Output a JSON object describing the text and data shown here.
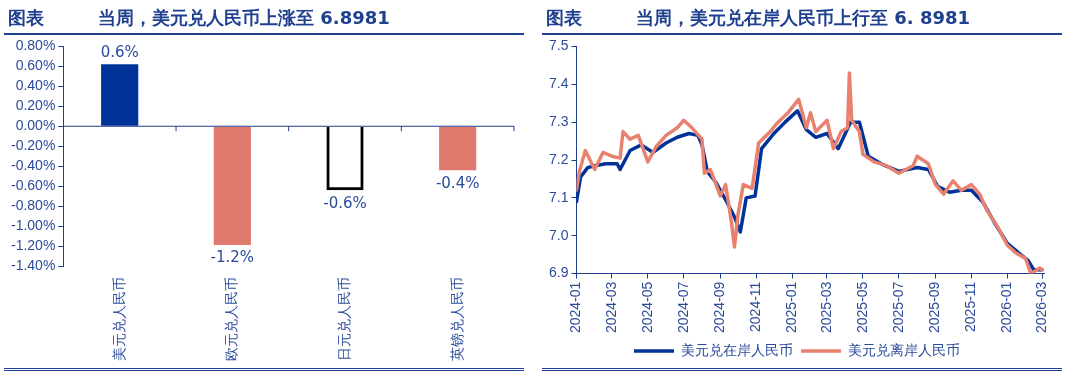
{
  "chart_data": [
    {
      "type": "bar",
      "title": "当周，美元兑人民币上涨至 6.8981",
      "annotations": [
        "图表"
      ],
      "categories": [
        "美元兑人民币",
        "欧元兑人民币",
        "日元兑人民币",
        "英镑兑人民币"
      ],
      "values": [
        0.62,
        -1.19,
        -0.64,
        -0.44
      ],
      "colors": [
        "#003399",
        "#e07a6e",
        "#000000",
        "#e07a6e"
      ],
      "ref_lines": [
        {
          "axis": "y",
          "value": 0,
          "color": "#1f3f8f"
        }
      ],
      "value_labels": [
        "0.6%",
        "-1.2%",
        "-0.6%",
        "-0.4%"
      ],
      "ylim": [
        -1.4,
        0.8
      ],
      "yticks": [
        {
          "value": 0.8,
          "label": "0.80%"
        },
        {
          "value": 0.6,
          "label": "0.60%"
        },
        {
          "value": 0.4,
          "label": "0.40%"
        },
        {
          "value": 0.2,
          "label": "0.20%"
        },
        {
          "value": 0,
          "label": "0.00%"
        },
        {
          "value": -0.2,
          "label": "-0.20%"
        },
        {
          "value": -0.4,
          "label": "-0.40%"
        },
        {
          "value": -0.6,
          "label": "-0.60%"
        },
        {
          "value": -0.8,
          "label": "-0.80%"
        },
        {
          "value": -1,
          "label": "-1.00%"
        },
        {
          "value": -1.2,
          "label": "-1.20%"
        },
        {
          "value": -1.4,
          "label": "-1.40%"
        }
      ],
      "grid": false,
      "legend": false
    },
    {
      "type": "line",
      "title": "当周，美元兑在岸人民币上行至 6. 8981",
      "annotations": [
        "图表"
      ],
      "series": [
        {
          "name": "美元兑在岸人民币",
          "color": "#003399",
          "x": [
            "2024-01-01",
            "2024-01-08",
            "2024-01-20",
            "2024-02-01",
            "2024-02-20",
            "2024-03-10",
            "2024-03-15",
            "2024-04-01",
            "2024-04-20",
            "2024-05-10",
            "2024-06-01",
            "2024-06-20",
            "2024-07-10",
            "2024-07-25",
            "2024-08-01",
            "2024-08-10",
            "2024-08-25",
            "2024-09-10",
            "2024-09-25",
            "2024-10-05",
            "2024-10-15",
            "2024-10-30",
            "2024-11-10",
            "2024-12-01",
            "2024-12-20",
            "2025-01-10",
            "2025-01-25",
            "2025-02-10",
            "2025-03-01",
            "2025-03-20",
            "2025-04-10",
            "2025-04-25",
            "2025-05-10",
            "2025-06-01",
            "2025-07-01",
            "2025-08-01",
            "2025-08-20",
            "2025-09-05",
            "2025-09-25",
            "2025-10-15",
            "2025-11-01",
            "2025-11-20",
            "2025-12-10",
            "2026-01-01",
            "2026-01-20",
            "2026-02-05",
            "2026-02-15",
            "2026-03-01"
          ],
          "values": [
            7.09,
            7.155,
            7.18,
            7.185,
            7.19,
            7.19,
            7.175,
            7.225,
            7.24,
            7.22,
            7.245,
            7.26,
            7.27,
            7.265,
            7.24,
            7.17,
            7.14,
            7.095,
            7.05,
            7.01,
            7.1,
            7.105,
            7.23,
            7.27,
            7.3,
            7.33,
            7.28,
            7.26,
            7.27,
            7.23,
            7.3,
            7.3,
            7.21,
            7.19,
            7.17,
            7.18,
            7.175,
            7.13,
            7.115,
            7.12,
            7.12,
            7.09,
            7.035,
            6.98,
            6.955,
            6.935,
            6.91,
            6.91
          ]
        },
        {
          "name": "美元兑离岸人民币",
          "color": "#e8826f",
          "x": [
            "2024-01-01",
            "2024-01-06",
            "2024-01-16",
            "2024-02-01",
            "2024-02-15",
            "2024-03-01",
            "2024-03-15",
            "2024-03-20",
            "2024-04-01",
            "2024-04-15",
            "2024-05-01",
            "2024-05-15",
            "2024-06-01",
            "2024-06-20",
            "2024-07-01",
            "2024-07-15",
            "2024-08-01",
            "2024-08-05",
            "2024-08-15",
            "2024-09-01",
            "2024-09-10",
            "2024-09-20",
            "2024-09-25",
            "2024-10-01",
            "2024-10-10",
            "2024-10-25",
            "2024-11-05",
            "2024-11-25",
            "2024-12-05",
            "2024-12-25",
            "2025-01-12",
            "2025-01-25",
            "2025-02-01",
            "2025-02-10",
            "2025-03-01",
            "2025-03-12",
            "2025-03-25",
            "2025-04-05",
            "2025-04-08",
            "2025-04-12",
            "2025-04-25",
            "2025-05-01",
            "2025-05-20",
            "2025-06-10",
            "2025-07-01",
            "2025-07-25",
            "2025-08-01",
            "2025-08-20",
            "2025-09-01",
            "2025-09-15",
            "2025-10-01",
            "2025-10-15",
            "2025-11-01",
            "2025-11-15",
            "2025-11-28",
            "2025-12-15",
            "2026-01-01",
            "2026-01-15",
            "2026-02-01",
            "2026-02-10",
            "2026-02-25",
            "2026-03-01"
          ],
          "values": [
            7.12,
            7.17,
            7.225,
            7.175,
            7.22,
            7.21,
            7.205,
            7.275,
            7.255,
            7.265,
            7.195,
            7.235,
            7.265,
            7.285,
            7.305,
            7.285,
            7.255,
            7.165,
            7.175,
            7.105,
            7.135,
            7.035,
            6.97,
            7.055,
            7.135,
            7.125,
            7.245,
            7.275,
            7.295,
            7.325,
            7.36,
            7.285,
            7.325,
            7.275,
            7.305,
            7.23,
            7.275,
            7.285,
            7.43,
            7.305,
            7.275,
            7.215,
            7.195,
            7.185,
            7.165,
            7.185,
            7.21,
            7.19,
            7.135,
            7.11,
            7.145,
            7.12,
            7.135,
            7.11,
            7.065,
            7.025,
            6.975,
            6.955,
            6.94,
            6.9,
            6.915,
            6.91
          ]
        }
      ],
      "xlim": [
        "2024-01-01",
        "2026-03-05"
      ],
      "xticks": [
        "2024-01",
        "2024-03",
        "2024-05",
        "2024-07",
        "2024-09",
        "2024-11",
        "2025-01",
        "2025-03",
        "2025-05",
        "2025-07",
        "2025-09",
        "2025-11",
        "2026-01",
        "2026-03"
      ],
      "ylim": [
        6.9,
        7.5
      ],
      "yticks": [
        6.9,
        {
          "value": 7,
          "label": "7.0"
        },
        7.1,
        7.2,
        7.3,
        7.4,
        7.5
      ],
      "grid": false,
      "legend": "bottom",
      "marker": "none",
      "line_style": "solid"
    }
  ]
}
